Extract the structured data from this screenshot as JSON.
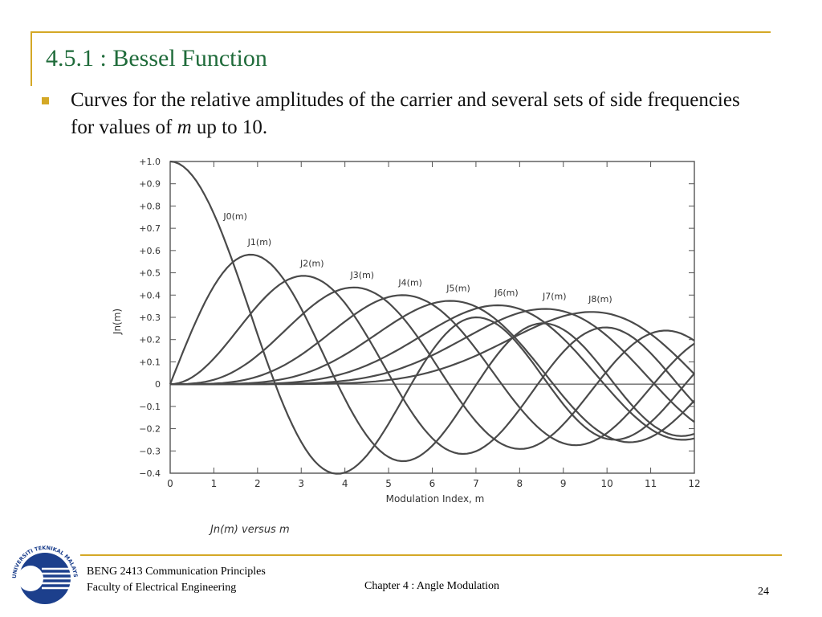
{
  "slide": {
    "title": "4.5.1 : Bessel Function",
    "bullet_part1": "Curves for the relative amplitudes of the carrier and several sets of side frequencies for values of ",
    "bullet_var": "m",
    "bullet_part2": " up to 10."
  },
  "chart_data": {
    "type": "line",
    "title": "",
    "caption": "Jn(m) versus m",
    "xlabel": "Modulation Index, m",
    "ylabel": "Jn(m)",
    "xlim": [
      0,
      12
    ],
    "ylim": [
      -0.4,
      1.0
    ],
    "x_ticks": [
      "0",
      "1",
      "2",
      "3",
      "4",
      "5",
      "6",
      "7",
      "8",
      "9",
      "10",
      "11",
      "12"
    ],
    "y_ticks": [
      "+1.0",
      "+0.9",
      "+0.8",
      "+0.7",
      "+0.6",
      "+0.5",
      "+0.4",
      "+0.3",
      "+0.2",
      "+0.1",
      "0",
      "−0.1",
      "−0.2",
      "−0.3",
      "−0.4"
    ],
    "series": [
      {
        "name": "J0(m)",
        "order": 0
      },
      {
        "name": "J1(m)",
        "order": 1
      },
      {
        "name": "J2(m)",
        "order": 2
      },
      {
        "name": "J3(m)",
        "order": 3
      },
      {
        "name": "J4(m)",
        "order": 4
      },
      {
        "name": "J5(m)",
        "order": 5
      },
      {
        "name": "J6(m)",
        "order": 6
      },
      {
        "name": "J7(m)",
        "order": 7
      },
      {
        "name": "J8(m)",
        "order": 8
      }
    ],
    "x_step": 0.1,
    "line_color": "#4a4a4a",
    "grid": false
  },
  "footer": {
    "course": "BENG 2413 Communication Principles",
    "faculty": "Faculty of Electrical Engineering",
    "chapter": "Chapter 4 : Angle Modulation",
    "page": "24",
    "logo_text": "UNIVERSITI TEKNIKAL MALAYSIA MELAKA"
  },
  "colors": {
    "accent": "#d4a826",
    "title": "#1f6b3a",
    "logo_blue": "#1c3f8c"
  }
}
